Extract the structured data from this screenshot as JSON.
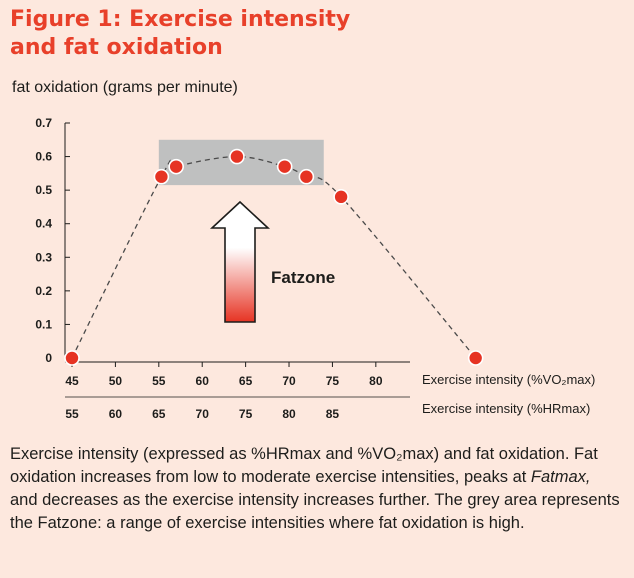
{
  "figure": {
    "title_line1": "Figure 1: Exercise intensity",
    "title_line2": "and fat oxidation"
  },
  "chart_data": {
    "type": "scatter",
    "ylabel": "fat oxidation (grams per minute)",
    "xlabel": "Exercise intensity (%VO₂max)",
    "xlabel2": "Exercise intensity (%HRmax)",
    "xlim": [
      45,
      92
    ],
    "ylim": [
      0,
      0.7
    ],
    "yticks": [
      "0",
      "0.1",
      "0.2",
      "0.3",
      "0.4",
      "0.5",
      "0.6",
      "0.7"
    ],
    "xticks": [
      "45",
      "50",
      "55",
      "60",
      "65",
      "70",
      "75",
      "80"
    ],
    "xticks2": [
      "55",
      "60",
      "65",
      "70",
      "75",
      "80",
      "85"
    ],
    "xticks2_at_vo2": [
      45,
      50,
      55,
      60,
      65,
      70,
      75
    ],
    "series": [
      {
        "points": [
          {
            "x": 45,
            "y": 0
          },
          {
            "x": 55.3,
            "y": 0.54
          },
          {
            "x": 57,
            "y": 0.57
          },
          {
            "x": 64,
            "y": 0.6
          },
          {
            "x": 69.5,
            "y": 0.57
          },
          {
            "x": 72,
            "y": 0.54
          },
          {
            "x": 76,
            "y": 0.48
          },
          {
            "x": 91.5,
            "y": 0
          }
        ]
      }
    ],
    "fatzone": {
      "label": "Fatzone",
      "x_range": [
        55,
        74
      ],
      "y_range": [
        0.515,
        0.65
      ]
    },
    "colors": {
      "marker": "#e63323",
      "zone": "#b8bbbd",
      "arrow_top": "#ffffff",
      "arrow_bottom": "#e63323"
    },
    "curve_style": "dashed",
    "grid": false
  },
  "caption": {
    "part1": "Exercise intensity (expressed as %HRmax and %VO₂max) and fat oxidation. Fat oxidation increases from low to moderate exercise intensities, peaks at ",
    "fatmax": "Fatmax,",
    "part2": " and decreases as the exercise intensity increases further. The grey area represents the Fatzone: a range of exercise intensities where fat oxidation is high."
  }
}
